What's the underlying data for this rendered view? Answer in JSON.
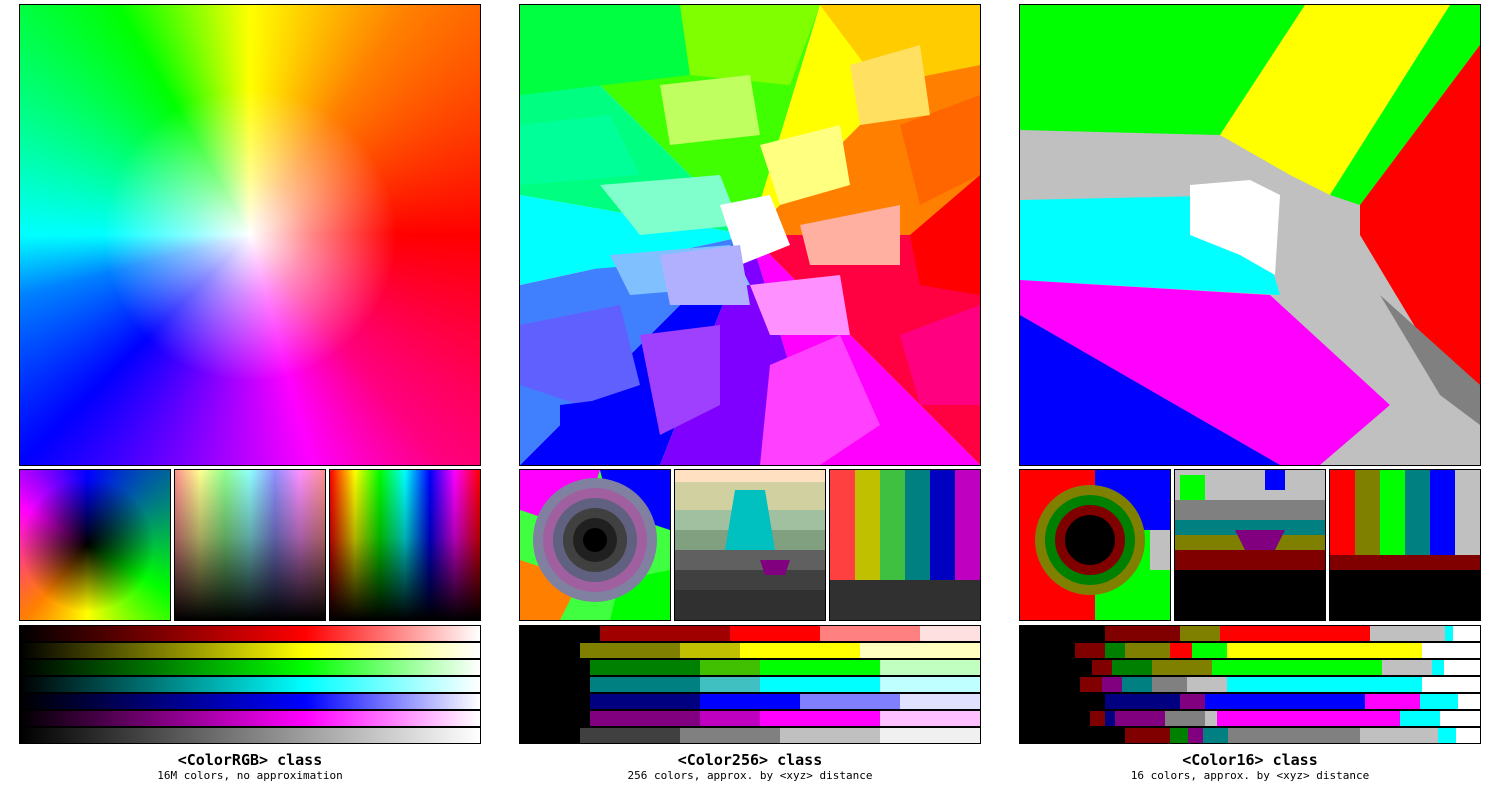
{
  "panels": [
    {
      "title": "<ColorRGB> class",
      "subtitle": "16M colors, no approximation"
    },
    {
      "title": "<Color256> class",
      "subtitle": "256 colors, approx. by <xyz> distance"
    },
    {
      "title": "<Color16> class",
      "subtitle": "16 colors, approx. by <xyz> distance"
    }
  ],
  "colors": {
    "red": "#ff0000",
    "yellow": "#ffff00",
    "green": "#00ff00",
    "cyan": "#00ffff",
    "blue": "#0000ff",
    "magenta": "#ff00ff",
    "white": "#ffffff",
    "black": "#000000",
    "silver": "#c0c0c0",
    "gray": "#808080",
    "maroon": "#800000",
    "olive": "#808000",
    "dark_green": "#008000",
    "teal": "#008080",
    "navy": "#000080",
    "purple": "#800080"
  }
}
